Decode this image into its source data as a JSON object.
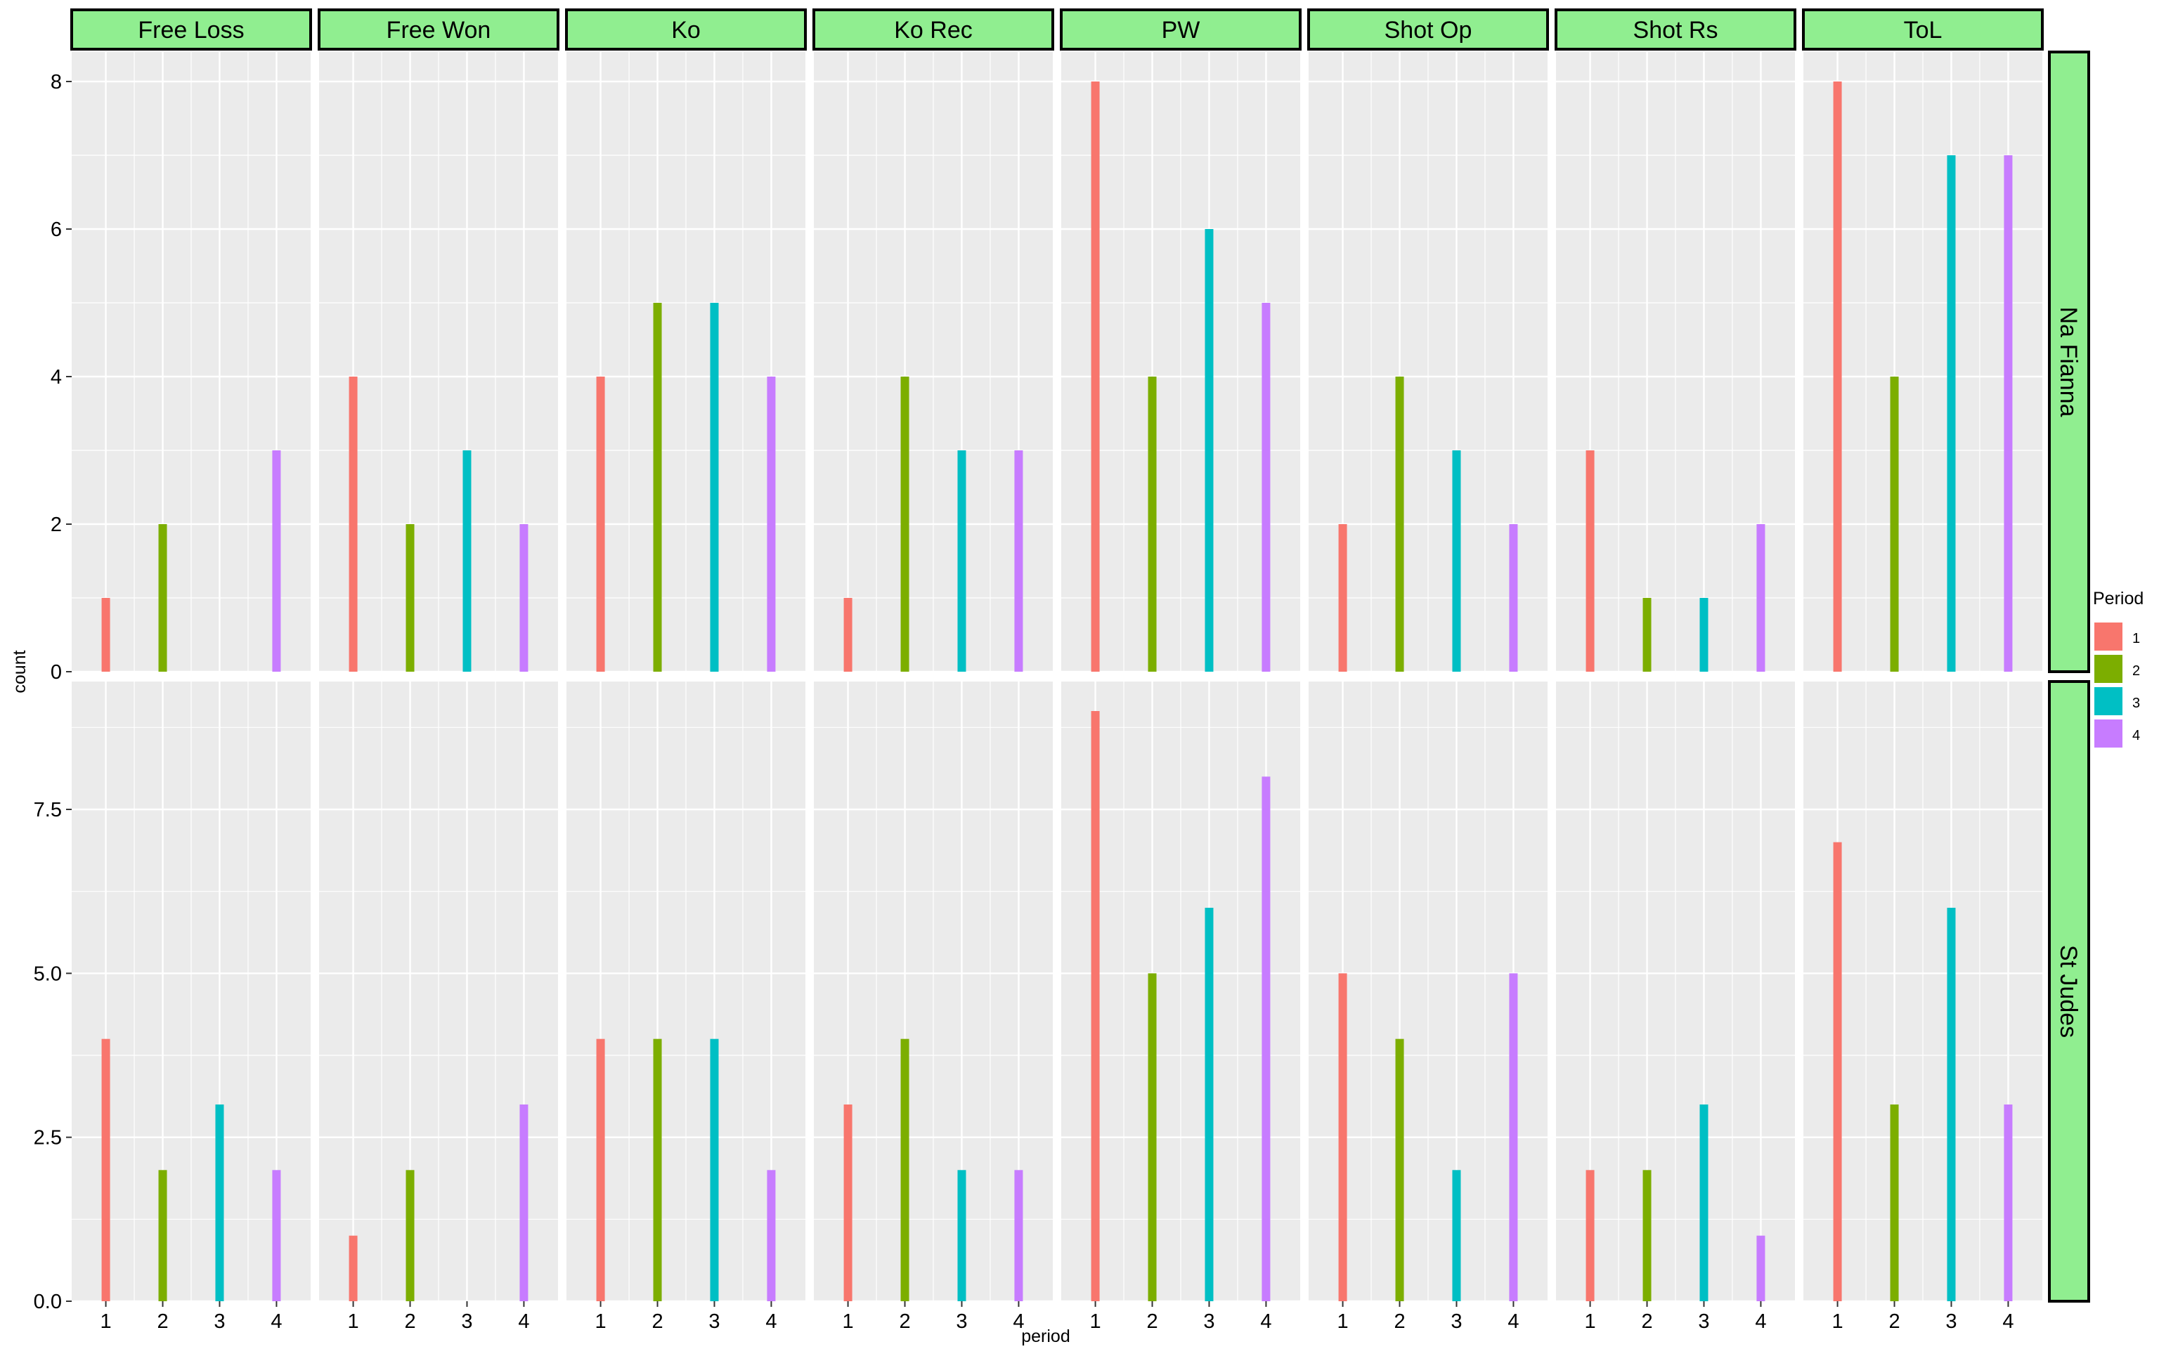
{
  "chart_data": {
    "type": "bar",
    "facet_columns": [
      "Free Loss",
      "Free Won",
      "Ko",
      "Ko Rec",
      "PW",
      "Shot Op",
      "Shot Rs",
      "ToL"
    ],
    "facet_rows": [
      "Na Fianna",
      "St Judes"
    ],
    "x": [
      1,
      2,
      3,
      4
    ],
    "x_ticks": [
      "1",
      "2",
      "3",
      "4"
    ],
    "xlabel": "period",
    "ylabel": "count",
    "legend": {
      "title": "Period",
      "position": "right",
      "entries": [
        "1",
        "2",
        "3",
        "4"
      ]
    },
    "colors": [
      "#F8766D",
      "#7CAE00",
      "#00BFC4",
      "#C77CFF"
    ],
    "strip_color": "#90EE90",
    "panel_background": "#EBEBEB",
    "grid": true,
    "rows": [
      {
        "ylim": [
          0,
          8.4
        ],
        "y_ticks": [
          0,
          2,
          4,
          6,
          8
        ],
        "y_tick_labels": [
          "0",
          "2",
          "4",
          "6",
          "8"
        ],
        "values": {
          "Free Loss": [
            1,
            2,
            0,
            3
          ],
          "Free Won": [
            4,
            2,
            3,
            2
          ],
          "Ko": [
            4,
            5,
            5,
            4
          ],
          "Ko Rec": [
            1,
            4,
            3,
            3
          ],
          "PW": [
            8,
            4,
            6,
            5
          ],
          "Shot Op": [
            2,
            4,
            3,
            2
          ],
          "Shot Rs": [
            3,
            1,
            1,
            2
          ],
          "ToL": [
            8,
            4,
            7,
            7
          ]
        }
      },
      {
        "ylim": [
          0,
          9.45
        ],
        "y_ticks": [
          0,
          2.5,
          5,
          7.5
        ],
        "y_tick_labels": [
          "0.0",
          "2.5",
          "5.0",
          "7.5"
        ],
        "values": {
          "Free Loss": [
            4,
            2,
            3,
            2
          ],
          "Free Won": [
            1,
            2,
            0,
            3
          ],
          "Ko": [
            4,
            4,
            4,
            2
          ],
          "Ko Rec": [
            3,
            4,
            2,
            2
          ],
          "PW": [
            9,
            5,
            6,
            8
          ],
          "Shot Op": [
            5,
            4,
            2,
            5
          ],
          "Shot Rs": [
            2,
            2,
            3,
            1
          ],
          "ToL": [
            7,
            3,
            6,
            3
          ]
        }
      }
    ]
  }
}
